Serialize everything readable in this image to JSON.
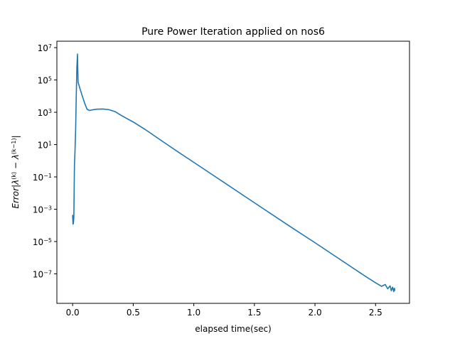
{
  "chart_data": {
    "type": "line",
    "title": "Pure Power Iteration applied on nos6",
    "xlabel": "elapsed time(sec)",
    "ylabel": "Error|λ^(k) − λ^(k−1)|",
    "ylabel_parts": {
      "prefix": "Error",
      "lambda": "λ",
      "sup_k": "(k)",
      "minus": " − ",
      "sup_k1": "(k−1)"
    },
    "x_scale": "linear",
    "y_scale": "log",
    "xlim": [
      -0.13,
      2.78
    ],
    "ylim": [
      1.5e-09,
      25000000.0
    ],
    "x_ticks": [
      0.0,
      0.5,
      1.0,
      1.5,
      2.0,
      2.5
    ],
    "x_tick_labels": [
      "0.0",
      "0.5",
      "1.0",
      "1.5",
      "2.0",
      "2.5"
    ],
    "y_ticks": [
      1e-07,
      1e-05,
      0.001,
      0.1,
      10.0,
      1000.0,
      100000.0,
      10000000.0
    ],
    "y_tick_labels": [
      {
        "base": "10",
        "exp": "−7"
      },
      {
        "base": "10",
        "exp": "−5"
      },
      {
        "base": "10",
        "exp": "−3"
      },
      {
        "base": "10",
        "exp": "−1"
      },
      {
        "base": "10",
        "exp": "1"
      },
      {
        "base": "10",
        "exp": "3"
      },
      {
        "base": "10",
        "exp": "5"
      },
      {
        "base": "10",
        "exp": "7"
      }
    ],
    "grid": false,
    "line_color": "#1f77b4",
    "series": [
      {
        "x": [
          0.0,
          0.003,
          0.006,
          0.01,
          0.015,
          0.02,
          0.025,
          0.03,
          0.035,
          0.04,
          0.045,
          0.05,
          0.06,
          0.08,
          0.1,
          0.12,
          0.14,
          0.16,
          0.2,
          0.25,
          0.3,
          0.35,
          0.4,
          0.45,
          0.5,
          0.6,
          0.7,
          0.8,
          0.9,
          1.0,
          1.2,
          1.4,
          1.6,
          1.8,
          2.0,
          2.2,
          2.4,
          2.5,
          2.55,
          2.58,
          2.6,
          2.62,
          2.63,
          2.64,
          2.65,
          2.655,
          2.66
        ],
        "y": [
          0.00045,
          0.00012,
          0.00013,
          0.0003,
          0.5,
          5,
          100,
          10000,
          600000,
          4000000,
          70000,
          55000,
          30000,
          10000,
          3500,
          1500,
          1300,
          1400,
          1550,
          1600,
          1450,
          1100,
          650,
          400,
          250,
          85,
          26,
          8,
          2.5,
          0.8,
          0.08,
          0.008,
          0.0008,
          8e-05,
          8.5e-06,
          8.5e-07,
          8.5e-08,
          2.8e-08,
          1.7e-08,
          2.2e-08,
          1.2e-08,
          1.8e-08,
          9e-09,
          1.5e-08,
          8e-09,
          1.3e-08,
          9e-09
        ]
      }
    ]
  }
}
